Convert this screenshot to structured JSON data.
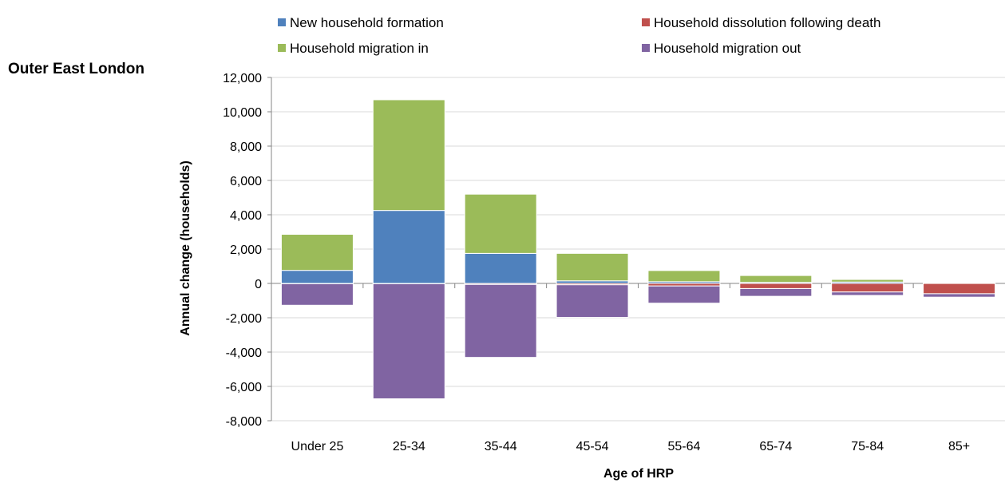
{
  "region_title": "Outer East London",
  "chart_data": {
    "type": "bar",
    "stacked": true,
    "categories": [
      "Under 25",
      "25-34",
      "35-44",
      "45-54",
      "55-64",
      "65-74",
      "75-84",
      "85+"
    ],
    "xlabel": "Age of HRP",
    "ylabel": "Annual change (households)",
    "ylim": [
      -8000,
      12000
    ],
    "yticks": [
      -8000,
      -6000,
      -4000,
      -2000,
      0,
      2000,
      4000,
      6000,
      8000,
      10000,
      12000
    ],
    "ytick_labels": [
      "-8,000",
      "-6,000",
      "-4,000",
      "-2,000",
      "0",
      "2,000",
      "4,000",
      "6,000",
      "8,000",
      "10,000",
      "12,000"
    ],
    "grid": true,
    "legend_position": "top",
    "series": [
      {
        "name": "New household formation",
        "color": "#4F81BD",
        "values": [
          760,
          4250,
          1750,
          150,
          100,
          60,
          80,
          0
        ]
      },
      {
        "name": "Household dissolution following death",
        "color": "#C0504D",
        "values": [
          -20,
          -20,
          -60,
          -80,
          -150,
          -300,
          -500,
          -600
        ]
      },
      {
        "name": "Household migration in",
        "color": "#9BBB59",
        "values": [
          2100,
          6450,
          3450,
          1600,
          650,
          400,
          150,
          20
        ]
      },
      {
        "name": "Household migration out",
        "color": "#8064A2",
        "values": [
          -1250,
          -6700,
          -4250,
          -1900,
          -1000,
          -450,
          -200,
          -200
        ]
      }
    ]
  }
}
